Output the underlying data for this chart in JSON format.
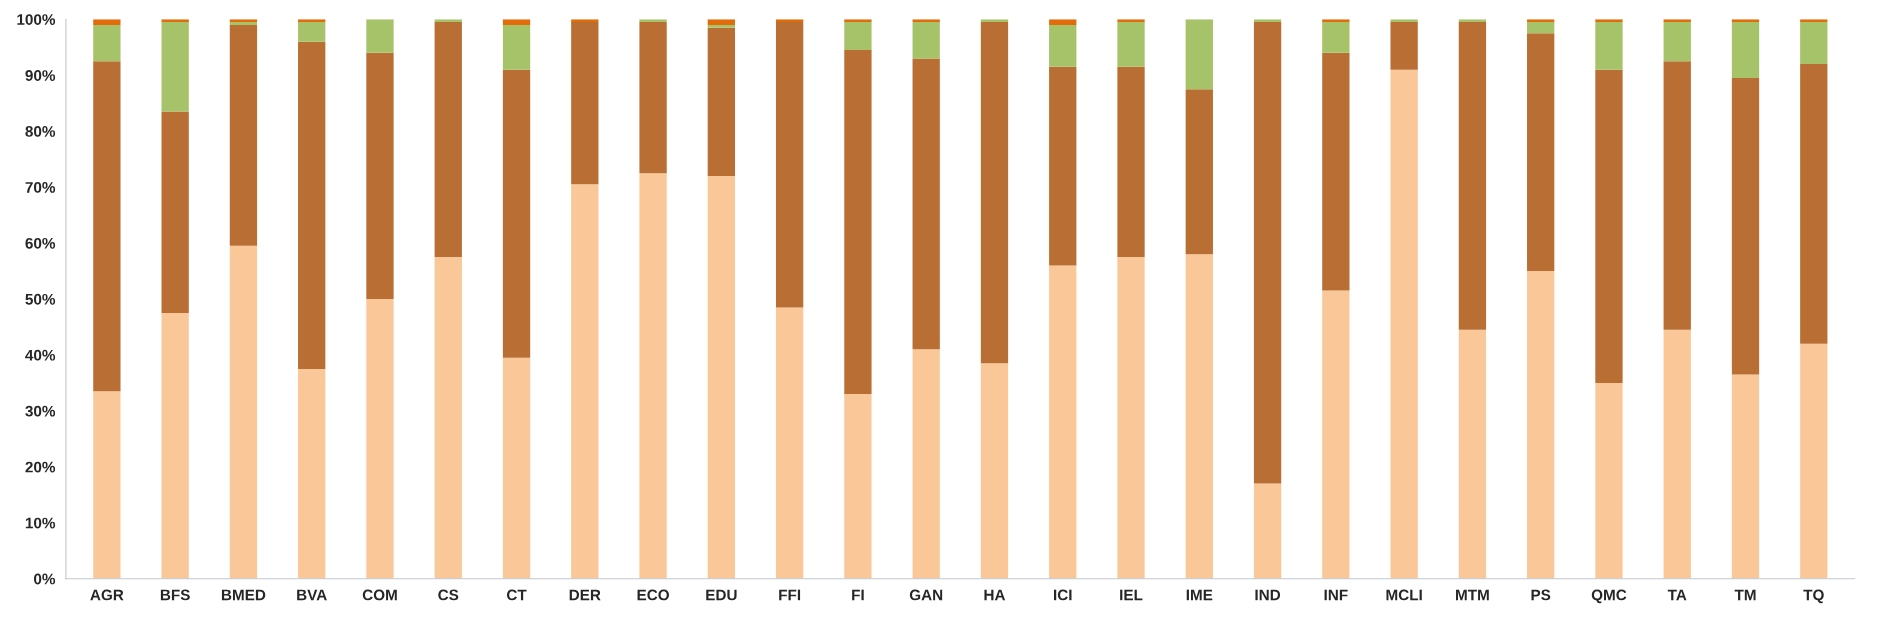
{
  "chart_data": {
    "type": "bar",
    "stacked": true,
    "categories": [
      "AGR",
      "BFS",
      "BMED",
      "BVA",
      "COM",
      "CS",
      "CT",
      "DER",
      "ECO",
      "EDU",
      "FFI",
      "FI",
      "GAN",
      "HA",
      "ICI",
      "IEL",
      "IME",
      "IND",
      "INF",
      "MCLI",
      "MTM",
      "PS",
      "QMC",
      "TA",
      "TM",
      "TQ"
    ],
    "series": [
      {
        "color": "#fac898",
        "values": [
          33.5,
          47.5,
          59.5,
          37.5,
          50,
          57.5,
          39.5,
          70.5,
          72.5,
          72,
          48.5,
          33,
          41,
          38.5,
          56,
          57.5,
          58,
          17,
          51.5,
          91,
          44.5,
          55,
          35,
          44.5,
          36.5,
          42
        ]
      },
      {
        "color": "#b96f33",
        "values": [
          59,
          36,
          39.5,
          58.5,
          44,
          42,
          51.5,
          29,
          27,
          26.5,
          51,
          61.5,
          52,
          61,
          35.5,
          34,
          29.5,
          82.5,
          42.5,
          8.5,
          55,
          42.5,
          56,
          48,
          53,
          50
        ]
      },
      {
        "color": "#a6c36a",
        "values": [
          6.5,
          16,
          0.5,
          3.5,
          6,
          0.5,
          8,
          0,
          0.5,
          0.5,
          0,
          5,
          6.5,
          0.5,
          7.5,
          8,
          12.5,
          0.5,
          5.5,
          0.5,
          0.5,
          2,
          8.5,
          7,
          10,
          7.5
        ]
      },
      {
        "color": "#e36c0a",
        "values": [
          1,
          0.5,
          0.5,
          0.5,
          0,
          0,
          1,
          0.5,
          0,
          1,
          0.5,
          0.5,
          0.5,
          0,
          1,
          0.5,
          0,
          0,
          0.5,
          0,
          0,
          0.5,
          0.5,
          0.5,
          0.5,
          0.5
        ]
      }
    ],
    "ylim": [
      0,
      100
    ],
    "yticks": [
      {
        "value": 0,
        "label": "0%"
      },
      {
        "value": 10,
        "label": "10%"
      },
      {
        "value": 20,
        "label": "20%"
      },
      {
        "value": 30,
        "label": "30%"
      },
      {
        "value": 40,
        "label": "40%"
      },
      {
        "value": 50,
        "label": "50%"
      },
      {
        "value": 60,
        "label": "60%"
      },
      {
        "value": 70,
        "label": "70%"
      },
      {
        "value": 80,
        "label": "80%"
      },
      {
        "value": 90,
        "label": "90%"
      },
      {
        "value": 100,
        "label": "100%"
      }
    ],
    "grid": false
  }
}
